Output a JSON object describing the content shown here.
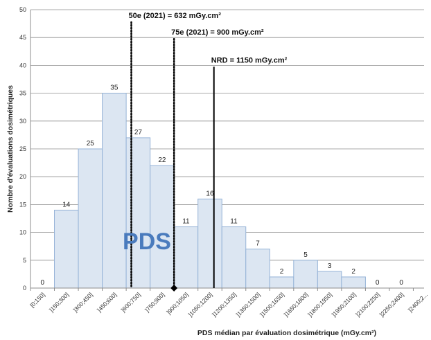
{
  "chart_data": {
    "type": "bar",
    "categories": [
      "[0;150]",
      "]150;300]",
      "]300;450]",
      "]450;600]",
      "]600;750]",
      "]750;900]",
      "]900;1050]",
      "]1050;1200]",
      "]1200;1350]",
      "]1350;1500]",
      "]1500;1650]",
      "]1650;1800]",
      "]1800;1950]",
      "]1950;2100]",
      "]2100;2250]",
      "]2250;2400]",
      "]2400;2..."
    ],
    "values": [
      0,
      14,
      25,
      35,
      27,
      22,
      11,
      16,
      11,
      7,
      2,
      5,
      3,
      2,
      0,
      0,
      null
    ],
    "data_labels": [
      "0",
      "14",
      "25",
      "35",
      "27",
      "22",
      "11",
      "16",
      "11",
      "7",
      "2",
      "5",
      "3",
      "2",
      "0",
      "0",
      ""
    ],
    "title": "",
    "xlabel": "PDS médian par évaluation dosimétrique (mGy.cm²)",
    "ylabel": "Nombre d'évaluations dosimétriques",
    "ylim": [
      0,
      50
    ],
    "yticks": [
      0,
      5,
      10,
      15,
      20,
      25,
      30,
      35,
      40,
      45,
      50
    ],
    "xlim_bins": [
      0,
      17
    ],
    "grid": "horizontal",
    "bar_fill": "#dce6f2",
    "bar_edge": "#95b3d7",
    "annotations": [
      {
        "label": "50e (2021) = 632 mGy.cm²",
        "x_value": 632,
        "y_value": 48.5,
        "style": "dotted"
      },
      {
        "label": "75e (2021) = 900 mGy.cm²",
        "x_value": 900,
        "y_value": 45.5,
        "style": "dotted"
      },
      {
        "label": "NRD = 1150 mGy.cm²",
        "x_value": 1150,
        "y_value": 40.5,
        "style": "solid"
      }
    ],
    "overlay_text": "PDS"
  }
}
